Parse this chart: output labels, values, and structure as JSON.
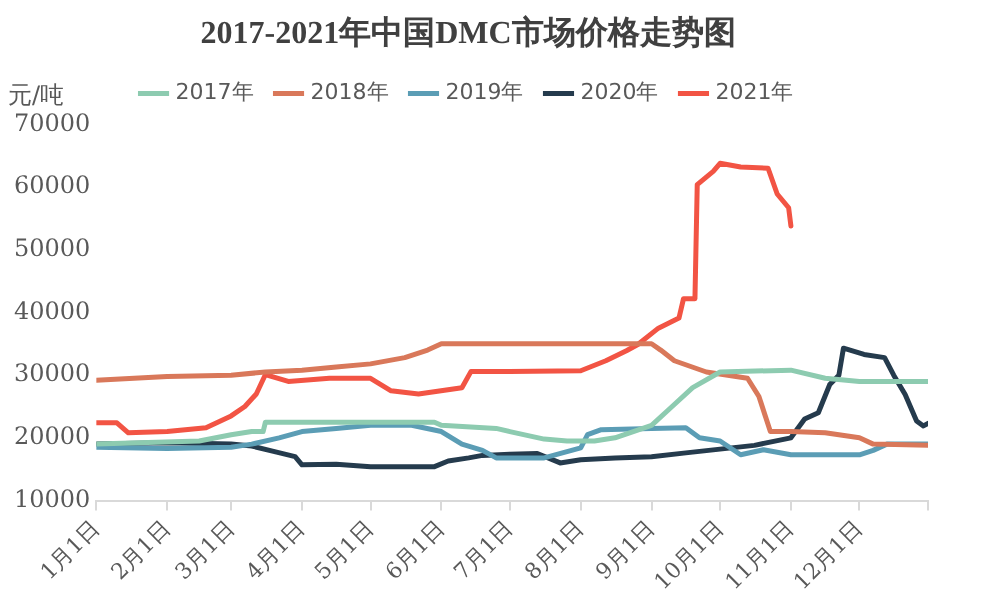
{
  "chart_data": {
    "type": "line",
    "title": "2017-2021年中国DMC市场价格走势图",
    "ylabel": "元/吨",
    "xlim": [
      "--01-01",
      "--12-31"
    ],
    "xticks": [
      {
        "value": "--01-01",
        "label": "1月1日"
      },
      {
        "value": "--02-01",
        "label": "2月1日"
      },
      {
        "value": "--03-01",
        "label": "3月1日"
      },
      {
        "value": "--04-01",
        "label": "4月1日"
      },
      {
        "value": "--05-01",
        "label": "5月1日"
      },
      {
        "value": "--06-01",
        "label": "6月1日"
      },
      {
        "value": "--07-01",
        "label": "7月1日"
      },
      {
        "value": "--08-01",
        "label": "8月1日"
      },
      {
        "value": "--09-01",
        "label": "9月1日"
      },
      {
        "value": "--10-01",
        "label": "10月1日"
      },
      {
        "value": "--11-01",
        "label": "11月1日"
      },
      {
        "value": "--12-01",
        "label": "12月1日"
      },
      {
        "value": "--12-31",
        "label": null
      }
    ],
    "ylim": [
      10000,
      70000
    ],
    "yticks": [
      10000,
      20000,
      30000,
      40000,
      50000,
      60000,
      70000
    ],
    "grid": false,
    "legend": "top",
    "marker": "none",
    "line_style": "solid",
    "series": [
      {
        "name": "2017年",
        "color": "#8dcbb0",
        "x": [
          "--01-01",
          "--02-15",
          "--03-01",
          "--03-10",
          "--03-15",
          "--03-16",
          "--04-01",
          "--05-01",
          "--05-29",
          "--06-01",
          "--06-25",
          "--07-01",
          "--07-16",
          "--07-26",
          "--08-07",
          "--08-16",
          "--09-01",
          "--09-10",
          "--09-19",
          "--10-01",
          "--11-01",
          "--11-16",
          "--12-01",
          "--12-31"
        ],
        "values": [
          19000,
          19500,
          20500,
          21000,
          21000,
          22500,
          22500,
          22500,
          22500,
          22000,
          21500,
          21000,
          19800,
          19500,
          19500,
          20000,
          22000,
          25000,
          28000,
          30500,
          30800,
          29500,
          29000,
          29000
        ]
      },
      {
        "name": "2018年",
        "color": "#d9785a",
        "x": [
          "--01-01",
          "--02-01",
          "--03-01",
          "--03-16",
          "--04-01",
          "--04-16",
          "--05-01",
          "--05-16",
          "--05-26",
          "--06-01",
          "--07-01",
          "--08-01",
          "--09-01",
          "--09-05",
          "--09-11",
          "--09-25",
          "--10-13",
          "--10-18",
          "--10-23",
          "--11-01",
          "--11-16",
          "--12-01",
          "--12-07",
          "--12-31"
        ],
        "values": [
          29200,
          29800,
          30000,
          30500,
          30800,
          31300,
          31800,
          32800,
          34000,
          35000,
          35000,
          35000,
          35000,
          34000,
          32300,
          30500,
          29500,
          26600,
          21000,
          21000,
          20800,
          20000,
          19000,
          18800
        ]
      },
      {
        "name": "2019年",
        "color": "#5b9db5",
        "x": [
          "--01-01",
          "--02-01",
          "--03-01",
          "--03-10",
          "--03-22",
          "--04-01",
          "--04-16",
          "--05-01",
          "--05-19",
          "--06-01",
          "--06-10",
          "--06-19",
          "--06-25",
          "--07-01",
          "--07-16",
          "--08-01",
          "--08-04",
          "--08-10",
          "--09-01",
          "--09-16",
          "--09-22",
          "--10-01",
          "--10-10",
          "--10-20",
          "--11-01",
          "--12-01",
          "--12-07",
          "--12-13",
          "--12-31"
        ],
        "values": [
          18500,
          18300,
          18500,
          19000,
          20000,
          21000,
          21500,
          22000,
          22000,
          21000,
          19000,
          18000,
          16800,
          16800,
          16800,
          18400,
          20500,
          21300,
          21500,
          21600,
          20000,
          19500,
          17300,
          18100,
          17300,
          17300,
          18000,
          19000,
          19000
        ]
      },
      {
        "name": "2020年",
        "color": "#253b4d",
        "x": [
          "--01-01",
          "--02-01",
          "--03-01",
          "--03-10",
          "--03-20",
          "--03-29",
          "--04-01",
          "--04-16",
          "--05-01",
          "--05-16",
          "--05-29",
          "--06-04",
          "--06-13",
          "--06-19",
          "--07-01",
          "--07-13",
          "--07-23",
          "--08-01",
          "--08-16",
          "--09-01",
          "--09-16",
          "--10-01",
          "--10-16",
          "--11-01",
          "--11-07",
          "--11-13",
          "--11-18",
          "--11-22",
          "--11-24",
          "--12-03",
          "--12-12",
          "--12-16",
          "--12-21",
          "--12-26",
          "--12-29",
          "--12-31"
        ],
        "values": [
          19000,
          19200,
          19000,
          18700,
          17800,
          17000,
          15700,
          15800,
          15400,
          15400,
          15400,
          16300,
          16800,
          17200,
          17400,
          17500,
          16000,
          16500,
          16800,
          17000,
          17600,
          18200,
          18800,
          20000,
          23000,
          24000,
          28500,
          30000,
          34300,
          33300,
          32800,
          30000,
          26900,
          22700,
          21900,
          22300
        ]
      },
      {
        "name": "2021年",
        "color": "#f25444",
        "x": [
          "--01-01",
          "--01-10",
          "--01-15",
          "--02-01",
          "--02-18",
          "--03-01",
          "--03-07",
          "--03-12",
          "--03-16",
          "--03-26",
          "--04-13",
          "--05-01",
          "--05-10",
          "--05-22",
          "--06-10",
          "--06-14",
          "--07-01",
          "--08-01",
          "--08-12",
          "--08-21",
          "--08-26",
          "--09-04",
          "--09-13",
          "--09-15",
          "--09-20",
          "--09-21",
          "--09-28",
          "--10-01",
          "--10-10",
          "--10-22",
          "--10-26",
          "--10-31",
          "--11-01"
        ],
        "values": [
          22400,
          22400,
          20800,
          21000,
          21600,
          23500,
          25000,
          27000,
          30100,
          29000,
          29500,
          29500,
          27500,
          27000,
          28000,
          30600,
          30600,
          30700,
          32300,
          33900,
          34900,
          37500,
          39100,
          42200,
          42200,
          60400,
          62500,
          63800,
          63200,
          63000,
          58900,
          56700,
          53800
        ]
      }
    ]
  }
}
